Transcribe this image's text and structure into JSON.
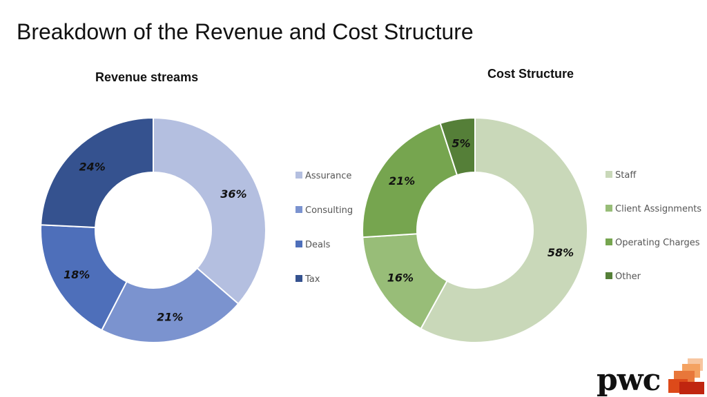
{
  "slide": {
    "title": "Breakdown of the Revenue and Cost Structure"
  },
  "logo": {
    "wordmark": "pwc",
    "colors": [
      "#f7c6a0",
      "#f4a261",
      "#e8773a",
      "#dd4a1a",
      "#c0250f"
    ]
  },
  "chart_data": [
    {
      "type": "pie",
      "variant": "donut",
      "title": "Revenue streams",
      "categories": [
        "Assurance",
        "Consulting",
        "Deals",
        "Tax"
      ],
      "values": [
        36,
        21,
        18,
        24
      ],
      "labels": [
        "36%",
        "21%",
        "18%",
        "24%"
      ],
      "colors": [
        "#b4bfe0",
        "#7b93cf",
        "#4e6fba",
        "#35528f"
      ],
      "legend_position": "right"
    },
    {
      "type": "pie",
      "variant": "donut",
      "title": "Cost Structure",
      "categories": [
        "Staff",
        "Client Assignments",
        "Operating Charges",
        "Other"
      ],
      "values": [
        58,
        16,
        21,
        5
      ],
      "labels": [
        "58%",
        "16%",
        "21%",
        "5%"
      ],
      "colors": [
        "#c9d8b9",
        "#98bd78",
        "#76a54f",
        "#557f38"
      ],
      "legend_position": "right"
    }
  ]
}
